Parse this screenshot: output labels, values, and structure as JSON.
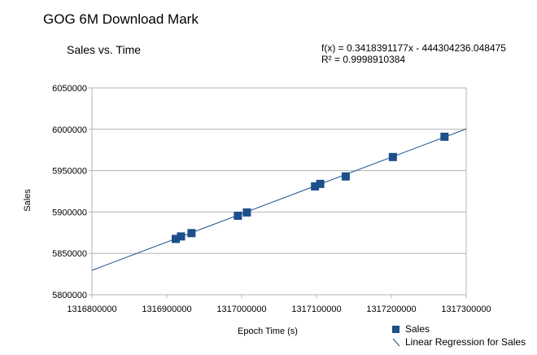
{
  "page_title": "GOG 6M Download Mark",
  "chart_data": {
    "type": "scatter",
    "title": "Sales vs. Time",
    "xlabel": "Epoch Time (s)",
    "ylabel": "Sales",
    "xlim": [
      1316800000,
      1317300000
    ],
    "ylim": [
      5800000,
      6050000
    ],
    "x_ticks": [
      "1316800000",
      "1316900000",
      "1317000000",
      "1317100000",
      "1317200000",
      "1317300000"
    ],
    "y_ticks": [
      "5800000",
      "5850000",
      "5900000",
      "5950000",
      "6000000",
      "6050000"
    ],
    "grid": true,
    "series": [
      {
        "name": "Sales",
        "color": "#1d4f8a",
        "x": [
          1316912000,
          1316919000,
          1316933000,
          1316995000,
          1317007000,
          1317098000,
          1317105000,
          1317139000,
          1317202000,
          1317271000
        ],
        "y": [
          5867500,
          5870500,
          5874500,
          5895500,
          5899500,
          5931000,
          5934000,
          5943000,
          5966500,
          5991000
        ]
      }
    ],
    "trendline": {
      "name": "Linear Regression for Sales",
      "color": "#1d4f8a",
      "equation": "f(x) = 0.3418391177x - 444304236.048475",
      "r_squared": "R² = 0.9998910384",
      "slope": 0.3418391177,
      "intercept": -444304236.048475
    },
    "legend_position": "bottom-right"
  }
}
